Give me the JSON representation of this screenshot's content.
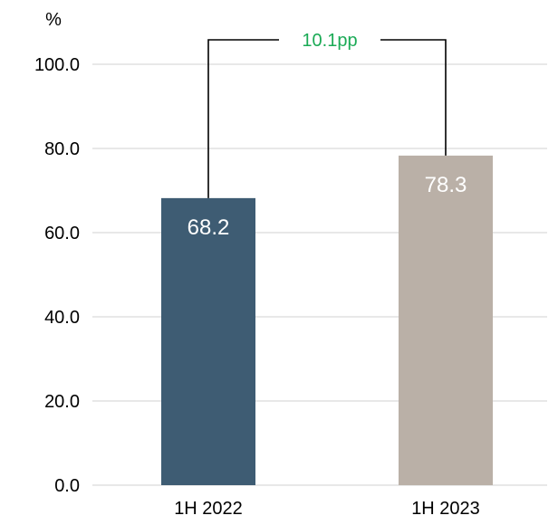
{
  "chart_data": {
    "type": "bar",
    "categories": [
      "1H 2022",
      "1H 2023"
    ],
    "values": [
      68.2,
      78.3
    ],
    "value_labels": [
      "68.2",
      "78.3"
    ],
    "bar_colors": [
      "#3e5c73",
      "#bab0a7"
    ],
    "ylabel": "%",
    "ylim": [
      0,
      100
    ],
    "y_ticks": [
      0,
      20,
      40,
      60,
      80,
      100
    ],
    "y_tick_labels": [
      "0.0",
      "20.0",
      "40.0",
      "60.0",
      "80.0",
      "100.0"
    ],
    "gridlines": true,
    "annotation": {
      "label": "10.1pp",
      "color": "#1aaa55",
      "from_category": "1H 2022",
      "to_category": "1H 2023"
    }
  }
}
